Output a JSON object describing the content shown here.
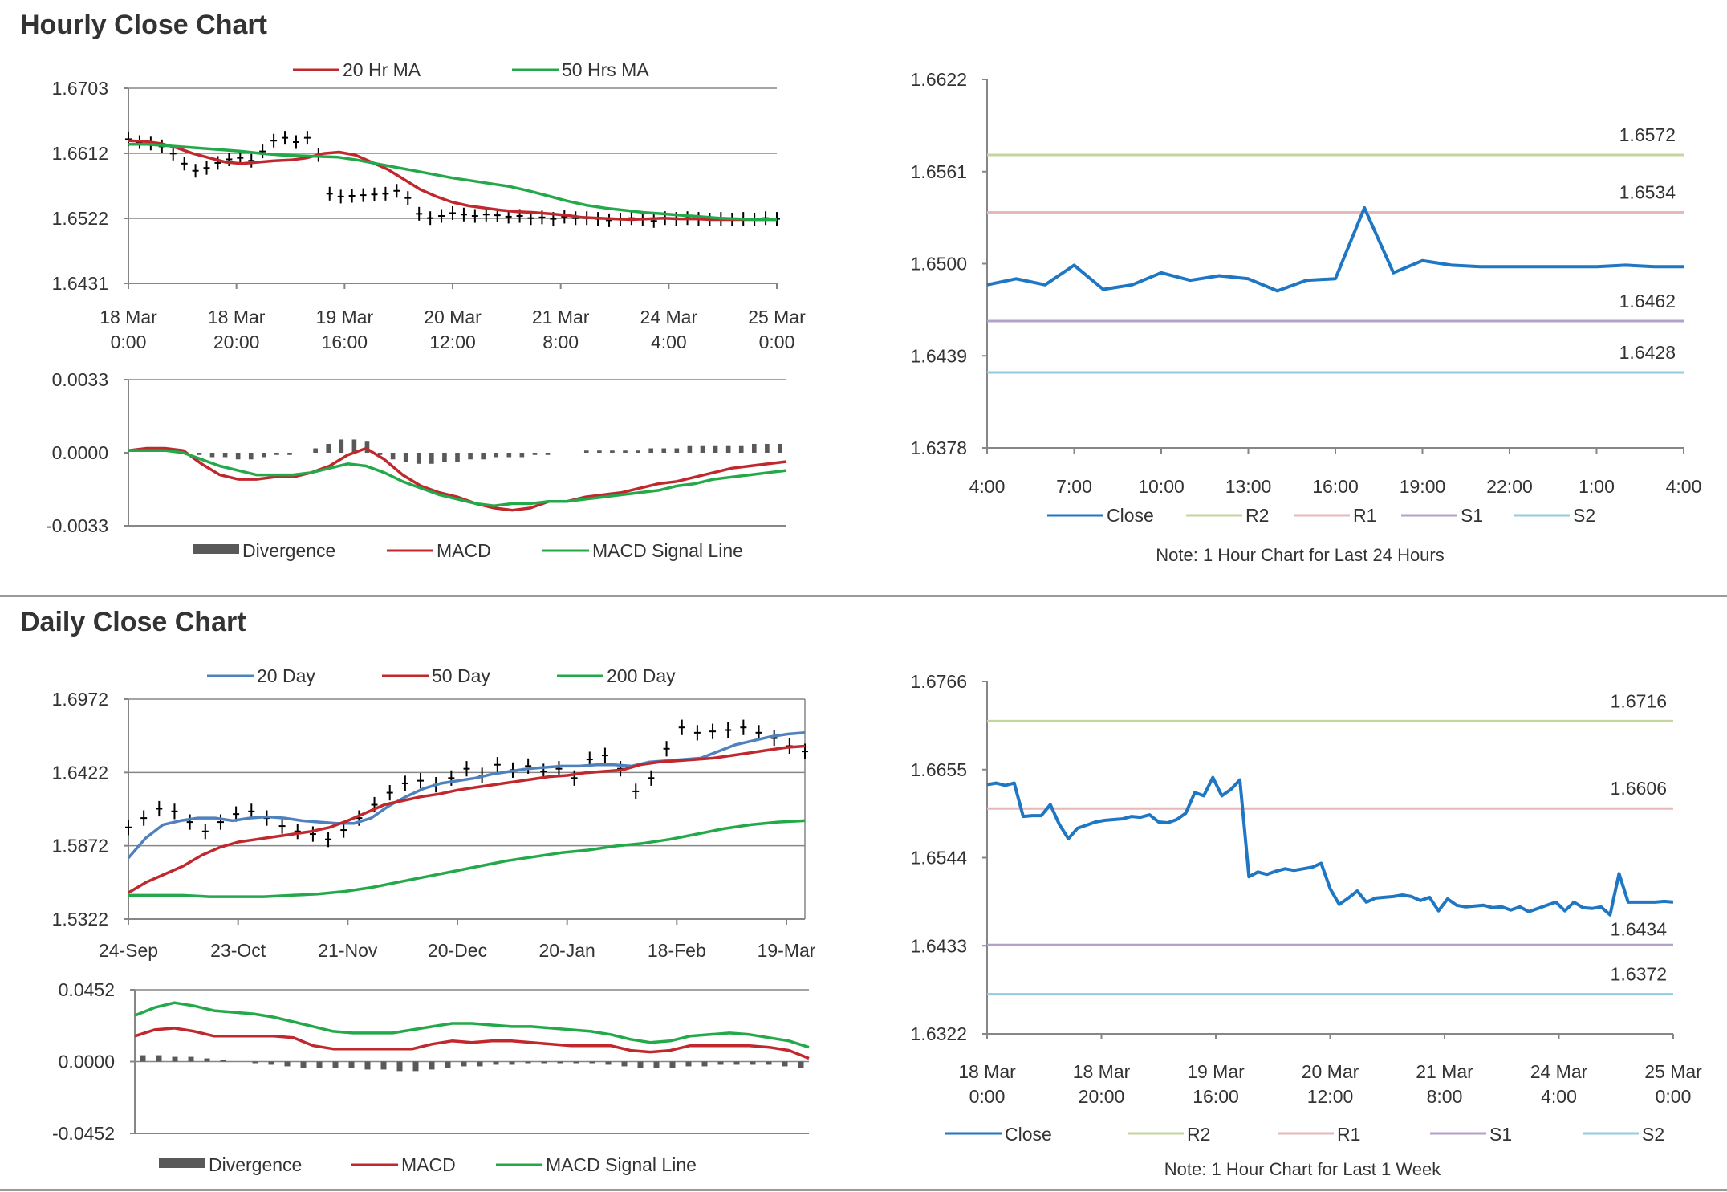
{
  "sections": {
    "hourly": "Hourly Close Chart",
    "daily": "Daily Close Chart"
  },
  "chart_data": [
    {
      "id": "hourly_price",
      "type": "line",
      "title": "",
      "legend": [
        "20 Hr MA",
        "50 Hrs MA"
      ],
      "x_ticks": [
        [
          "18 Mar",
          "0:00"
        ],
        [
          "18 Mar",
          "20:00"
        ],
        [
          "19 Mar",
          "16:00"
        ],
        [
          "20 Mar",
          "12:00"
        ],
        [
          "21 Mar",
          "8:00"
        ],
        [
          "24 Mar",
          "4:00"
        ],
        [
          "25 Mar",
          "0:00"
        ]
      ],
      "y_ticks": [
        "1.6703",
        "1.6612",
        "1.6522",
        "1.6431"
      ],
      "ylim": [
        1.6431,
        1.6703
      ],
      "grid": "horizontal",
      "close": [
        1.6632,
        1.6628,
        1.6626,
        1.6622,
        1.6612,
        1.6598,
        1.6588,
        1.6592,
        1.6599,
        1.6604,
        1.6606,
        1.6602,
        1.6615,
        1.663,
        1.6634,
        1.6628,
        1.6634,
        1.661,
        1.6556,
        1.6552,
        1.6553,
        1.6554,
        1.6555,
        1.6556,
        1.656,
        1.655,
        1.6528,
        1.6522,
        1.6525,
        1.6529,
        1.6527,
        1.6525,
        1.6527,
        1.6526,
        1.6524,
        1.6525,
        1.6522,
        1.6523,
        1.6521,
        1.6524,
        1.6522,
        1.6522,
        1.6521,
        1.6519,
        1.652,
        1.6522,
        1.652,
        1.6518,
        1.6522,
        1.6521,
        1.6522,
        1.6521,
        1.652,
        1.6521,
        1.652,
        1.6521,
        1.652,
        1.6522,
        1.6521
      ],
      "series": [
        {
          "name": "20 Hr MA",
          "color": "#c0282e",
          "values": [
            1.663,
            1.6629,
            1.6626,
            1.662,
            1.6612,
            1.6606,
            1.66,
            1.6598,
            1.66,
            1.6602,
            1.6603,
            1.6606,
            1.6612,
            1.6614,
            1.661,
            1.66,
            1.659,
            1.6576,
            1.6562,
            1.6552,
            1.6544,
            1.6539,
            1.6536,
            1.6533,
            1.6531,
            1.653,
            1.6528,
            1.6526,
            1.6523,
            1.6522,
            1.6521,
            1.652,
            1.6521,
            1.6522,
            1.6521,
            1.6521,
            1.652,
            1.652,
            1.652,
            1.652,
            1.652
          ]
        },
        {
          "name": "50 Hrs MA",
          "color": "#24a94a",
          "values": [
            1.6625,
            1.6625,
            1.6623,
            1.6621,
            1.6619,
            1.6617,
            1.6615,
            1.6612,
            1.661,
            1.6609,
            1.6608,
            1.6607,
            1.6603,
            1.6598,
            1.6593,
            1.6588,
            1.6583,
            1.6578,
            1.6574,
            1.657,
            1.6566,
            1.656,
            1.6553,
            1.6546,
            1.654,
            1.6536,
            1.6533,
            1.653,
            1.6528,
            1.6526,
            1.6524,
            1.6522,
            1.6521,
            1.652,
            1.652
          ]
        }
      ]
    },
    {
      "id": "hourly_macd",
      "type": "line",
      "title": "",
      "legend": [
        "Divergence",
        "MACD",
        "MACD Signal Line"
      ],
      "y_ticks": [
        "0.0033",
        "0.0000",
        "-0.0033"
      ],
      "ylim": [
        -0.0033,
        0.0033
      ],
      "divergence": [
        0,
        0,
        0,
        0,
        0,
        -0.0001,
        -0.0002,
        -0.0002,
        -0.0003,
        -0.0003,
        -0.0002,
        -0.0001,
        -0.0001,
        0,
        0.0002,
        0.0004,
        0.0006,
        0.0006,
        0.0005,
        -0.0001,
        -0.0003,
        -0.0004,
        -0.0005,
        -0.0005,
        -0.0004,
        -0.0004,
        -0.0003,
        -0.0003,
        -0.0002,
        -0.0002,
        -0.0002,
        -0.0001,
        -0.0001,
        0,
        0,
        0.0001,
        0.0001,
        0.0001,
        0.0001,
        0.0001,
        0.0002,
        0.0002,
        0.0002,
        0.0003,
        0.0003,
        0.0003,
        0.0003,
        0.0003,
        0.0004,
        0.0004,
        0.0004
      ],
      "series": [
        {
          "name": "MACD",
          "color": "#c0282e",
          "values": [
            0.0001,
            0.0002,
            0.0002,
            0.0001,
            -0.0005,
            -0.001,
            -0.0012,
            -0.0012,
            -0.0011,
            -0.0011,
            -0.0009,
            -0.0006,
            -0.0001,
            0.0002,
            -0.0003,
            -0.001,
            -0.0015,
            -0.0018,
            -0.002,
            -0.0023,
            -0.0025,
            -0.0026,
            -0.0025,
            -0.0022,
            -0.0022,
            -0.002,
            -0.0019,
            -0.0018,
            -0.0016,
            -0.0014,
            -0.0013,
            -0.0011,
            -0.0009,
            -0.0007,
            -0.0006,
            -0.0005,
            -0.0004
          ]
        },
        {
          "name": "MACD Signal Line",
          "color": "#24a94a",
          "values": [
            0.0001,
            0.0001,
            0.0001,
            0.0,
            -0.0003,
            -0.0006,
            -0.0008,
            -0.001,
            -0.001,
            -0.001,
            -0.0009,
            -0.0007,
            -0.0005,
            -0.0006,
            -0.0009,
            -0.0013,
            -0.0016,
            -0.0019,
            -0.0021,
            -0.0023,
            -0.0024,
            -0.0023,
            -0.0023,
            -0.0022,
            -0.0022,
            -0.0021,
            -0.002,
            -0.0019,
            -0.0018,
            -0.0017,
            -0.0015,
            -0.0014,
            -0.0012,
            -0.0011,
            -0.001,
            -0.0009,
            -0.0008
          ]
        }
      ]
    },
    {
      "id": "hourly_24h",
      "type": "line",
      "title": "",
      "legend": [
        "Close",
        "R2",
        "R1",
        "S1",
        "S2"
      ],
      "x_ticks": [
        "4:00",
        "7:00",
        "10:00",
        "13:00",
        "16:00",
        "19:00",
        "22:00",
        "1:00",
        "4:00"
      ],
      "y_ticks": [
        "1.6622",
        "1.6561",
        "1.6500",
        "1.6439",
        "1.6378"
      ],
      "ylim": [
        1.6378,
        1.6622
      ],
      "close": [
        1.6486,
        1.649,
        1.6486,
        1.6499,
        1.6483,
        1.6486,
        1.6494,
        1.6489,
        1.6492,
        1.649,
        1.6482,
        1.6489,
        1.649,
        1.6537,
        1.6494,
        1.6502,
        1.6499,
        1.6498,
        1.6498,
        1.6498,
        1.6498,
        1.6498,
        1.6499,
        1.6498,
        1.6498
      ],
      "levels": [
        {
          "name": "R2",
          "value": 1.6572,
          "label": "1.6572",
          "color": "#c3d69b"
        },
        {
          "name": "R1",
          "value": 1.6534,
          "label": "1.6534",
          "color": "#e6b9b8"
        },
        {
          "name": "S1",
          "value": 1.6462,
          "label": "1.6462",
          "color": "#b3a2c7"
        },
        {
          "name": "S2",
          "value": 1.6428,
          "label": "1.6428",
          "color": "#93cddd"
        }
      ],
      "note": "Note: 1 Hour Chart for Last 24 Hours"
    },
    {
      "id": "daily_price",
      "type": "line",
      "title": "",
      "legend": [
        "20 Day",
        "50 Day",
        "200 Day"
      ],
      "x_ticks": [
        "24-Sep",
        "23-Oct",
        "21-Nov",
        "20-Dec",
        "20-Jan",
        "18-Feb",
        "19-Mar"
      ],
      "y_ticks": [
        "1.6972",
        "1.6422",
        "1.5872",
        "1.5322"
      ],
      "ylim": [
        1.5322,
        1.6972
      ],
      "close": [
        1.601,
        1.608,
        1.615,
        1.613,
        1.605,
        1.598,
        1.605,
        1.611,
        1.613,
        1.608,
        1.602,
        1.598,
        1.596,
        1.592,
        1.599,
        1.608,
        1.618,
        1.627,
        1.634,
        1.636,
        1.633,
        1.638,
        1.645,
        1.64,
        1.648,
        1.644,
        1.647,
        1.643,
        1.645,
        1.638,
        1.652,
        1.655,
        1.645,
        1.628,
        1.638,
        1.66,
        1.676,
        1.672,
        1.673,
        1.674,
        1.676,
        1.672,
        1.668,
        1.662,
        1.658
      ],
      "series": [
        {
          "name": "20 Day",
          "color": "#4f81bd",
          "values": [
            1.578,
            1.593,
            1.603,
            1.606,
            1.608,
            1.608,
            1.606,
            1.608,
            1.609,
            1.608,
            1.606,
            1.605,
            1.604,
            1.604,
            1.608,
            1.617,
            1.624,
            1.63,
            1.634,
            1.636,
            1.638,
            1.641,
            1.643,
            1.645,
            1.646,
            1.647,
            1.647,
            1.648,
            1.648,
            1.647,
            1.65,
            1.651,
            1.652,
            1.653,
            1.658,
            1.663,
            1.666,
            1.669,
            1.671,
            1.672
          ]
        },
        {
          "name": "50 Day",
          "color": "#c0282e",
          "values": [
            1.552,
            1.56,
            1.566,
            1.572,
            1.58,
            1.586,
            1.59,
            1.592,
            1.594,
            1.596,
            1.598,
            1.601,
            1.606,
            1.612,
            1.618,
            1.621,
            1.624,
            1.626,
            1.629,
            1.631,
            1.633,
            1.635,
            1.637,
            1.639,
            1.64,
            1.642,
            1.643,
            1.644,
            1.648,
            1.65,
            1.651,
            1.652,
            1.653,
            1.655,
            1.657,
            1.659,
            1.661,
            1.662
          ]
        },
        {
          "name": "200 Day",
          "color": "#24a94a",
          "values": [
            1.55,
            1.55,
            1.55,
            1.549,
            1.549,
            1.549,
            1.55,
            1.551,
            1.553,
            1.556,
            1.56,
            1.564,
            1.568,
            1.572,
            1.576,
            1.579,
            1.582,
            1.584,
            1.587,
            1.589,
            1.592,
            1.596,
            1.6,
            1.603,
            1.605,
            1.606
          ]
        }
      ]
    },
    {
      "id": "daily_macd",
      "type": "line",
      "title": "",
      "legend": [
        "Divergence",
        "MACD",
        "MACD Signal Line"
      ],
      "y_ticks": [
        "0.0452",
        "0.0000",
        "-0.0452"
      ],
      "ylim": [
        -0.0452,
        0.0452
      ],
      "divergence": [
        0.004,
        0.004,
        0.003,
        0.003,
        0.002,
        0.001,
        0.0,
        -0.001,
        -0.002,
        -0.003,
        -0.004,
        -0.004,
        -0.004,
        -0.004,
        -0.005,
        -0.005,
        -0.006,
        -0.006,
        -0.005,
        -0.004,
        -0.003,
        -0.003,
        -0.002,
        -0.002,
        -0.001,
        -0.001,
        -0.001,
        -0.001,
        -0.001,
        -0.002,
        -0.003,
        -0.004,
        -0.004,
        -0.004,
        -0.003,
        -0.003,
        -0.002,
        -0.002,
        -0.002,
        -0.002,
        -0.003,
        -0.004
      ],
      "series": [
        {
          "name": "MACD",
          "color": "#c0282e",
          "values": [
            0.016,
            0.02,
            0.021,
            0.019,
            0.016,
            0.016,
            0.016,
            0.016,
            0.015,
            0.01,
            0.008,
            0.008,
            0.008,
            0.008,
            0.008,
            0.011,
            0.013,
            0.012,
            0.013,
            0.013,
            0.012,
            0.011,
            0.01,
            0.01,
            0.01,
            0.007,
            0.006,
            0.007,
            0.01,
            0.01,
            0.01,
            0.01,
            0.009,
            0.007,
            0.002
          ]
        },
        {
          "name": "MACD Signal Line",
          "color": "#24a94a",
          "values": [
            0.029,
            0.034,
            0.037,
            0.035,
            0.032,
            0.031,
            0.03,
            0.028,
            0.025,
            0.022,
            0.019,
            0.018,
            0.018,
            0.018,
            0.02,
            0.022,
            0.024,
            0.024,
            0.023,
            0.022,
            0.022,
            0.021,
            0.02,
            0.019,
            0.017,
            0.014,
            0.012,
            0.013,
            0.016,
            0.017,
            0.018,
            0.017,
            0.015,
            0.013,
            0.009
          ]
        }
      ]
    },
    {
      "id": "daily_week",
      "type": "line",
      "title": "",
      "legend": [
        "Close",
        "R2",
        "R1",
        "S1",
        "S2"
      ],
      "x_ticks": [
        [
          "18 Mar",
          "0:00"
        ],
        [
          "18 Mar",
          "20:00"
        ],
        [
          "19 Mar",
          "16:00"
        ],
        [
          "20 Mar",
          "12:00"
        ],
        [
          "21 Mar",
          "8:00"
        ],
        [
          "24 Mar",
          "4:00"
        ],
        [
          "25 Mar",
          "0:00"
        ]
      ],
      "y_ticks": [
        "1.6766",
        "1.6655",
        "1.6544",
        "1.6433",
        "1.6322"
      ],
      "ylim": [
        1.6322,
        1.6766
      ],
      "close": [
        1.6636,
        1.6638,
        1.6635,
        1.6638,
        1.6596,
        1.6597,
        1.6597,
        1.6611,
        1.6586,
        1.6568,
        1.6581,
        1.6585,
        1.6589,
        1.6591,
        1.6592,
        1.6593,
        1.6596,
        1.6595,
        1.6598,
        1.6589,
        1.6588,
        1.6592,
        1.66,
        1.6626,
        1.6622,
        1.6645,
        1.6622,
        1.663,
        1.6642,
        1.652,
        1.6526,
        1.6523,
        1.6527,
        1.653,
        1.6528,
        1.653,
        1.6532,
        1.6537,
        1.6505,
        1.6485,
        1.6493,
        1.6502,
        1.6488,
        1.6493,
        1.6494,
        1.6495,
        1.6497,
        1.6495,
        1.649,
        1.6494,
        1.6477,
        1.6492,
        1.6484,
        1.6482,
        1.6483,
        1.6484,
        1.6481,
        1.6482,
        1.6478,
        1.6482,
        1.6476,
        1.648,
        1.6484,
        1.6488,
        1.6477,
        1.6488,
        1.6481,
        1.648,
        1.6482,
        1.6472,
        1.6524,
        1.6488,
        1.6488,
        1.6488,
        1.6488,
        1.6489,
        1.6488
      ],
      "levels": [
        {
          "name": "R2",
          "value": 1.6716,
          "label": "1.6716",
          "color": "#c3d69b"
        },
        {
          "name": "R1",
          "value": 1.6606,
          "label": "1.6606",
          "color": "#e6b9b8"
        },
        {
          "name": "S1",
          "value": 1.6434,
          "label": "1.6434",
          "color": "#b3a2c7"
        },
        {
          "name": "S2",
          "value": 1.6372,
          "label": "1.6372",
          "color": "#93cddd"
        }
      ],
      "note": "Note: 1 Hour Chart for Last 1 Week"
    }
  ]
}
